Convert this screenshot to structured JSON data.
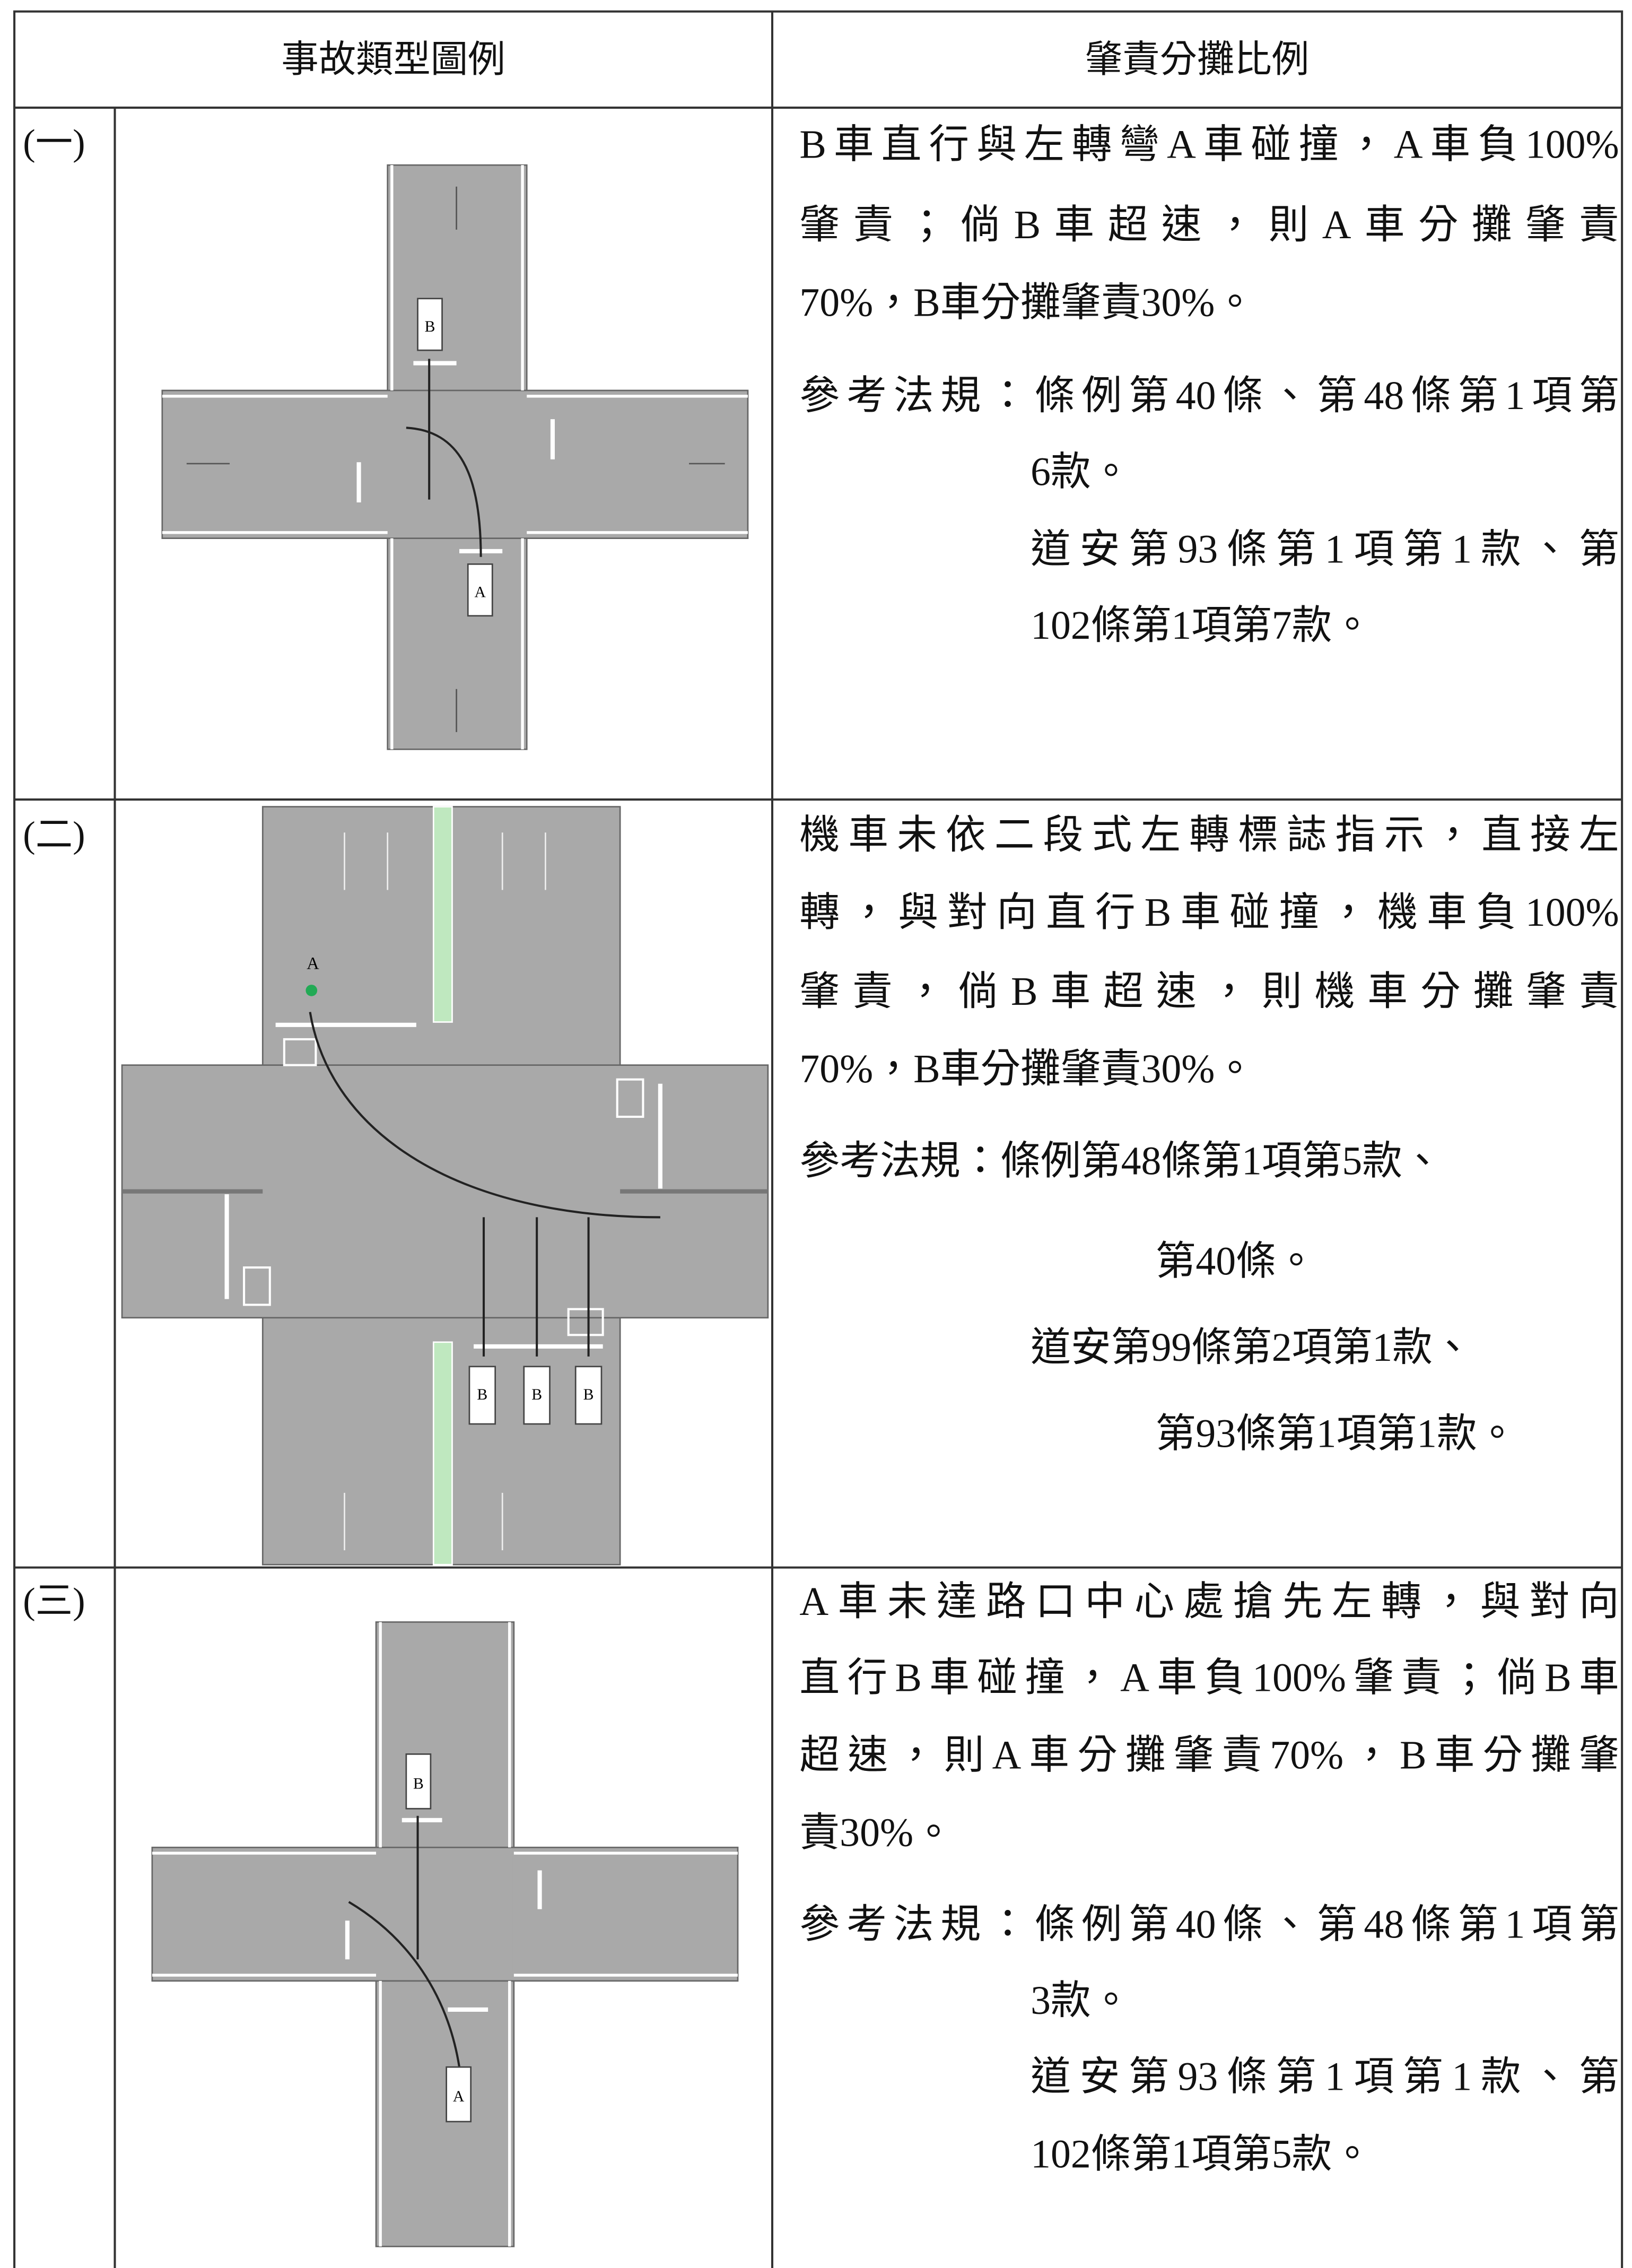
{
  "header": [
    "事故類型圖例",
    "肇責分攤比例"
  ],
  "rows": [
    {
      "label": "(一)",
      "description": [
        "B車直行與左轉彎A車碰撞，A車負100%",
        "肇責；倘B車超速，則A車分攤肇責",
        "70%，B車分攤肇責30%。"
      ],
      "references": [
        "參考法規：條例第40條、第48條第1項第",
        "6款。",
        "道安第93條第1項第1款、第",
        "102條第1項第7款。"
      ],
      "diagram_labels": [
        "B",
        "A"
      ]
    },
    {
      "label": "(二)",
      "description": [
        "機車未依二段式左轉標誌指示，直接左",
        "轉，與對向直行B車碰撞，機車負100%",
        "肇責，倘B車超速，則機車分攤肇責",
        "70%，B車分攤肇責30%。"
      ],
      "references": [
        "參考法規：條例第48條第1項第5款、",
        "第40條。",
        "道安第99條第2項第1款、",
        "第93條第1項第1款。"
      ],
      "diagram_labels": [
        "A",
        "B",
        "B",
        "B"
      ]
    },
    {
      "label": "(三)",
      "description": [
        "A車未達路口中心處搶先左轉，與對向",
        "直行B車碰撞，A車負100%肇責；倘B車",
        "超速，則A車分攤肇責70%，B車分攤肇",
        "責30%。"
      ],
      "references": [
        "參考法規：條例第40條、第48條第1項第",
        "3款。",
        "道安第93條第1項第1款、第",
        "102條第1項第5款。"
      ],
      "diagram_labels": [
        "B",
        "A"
      ]
    }
  ]
}
